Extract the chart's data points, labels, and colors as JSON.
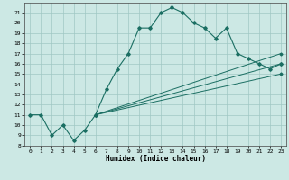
{
  "title": "",
  "xlabel": "Humidex (Indice chaleur)",
  "xlim": [
    -0.5,
    23.5
  ],
  "ylim": [
    8,
    22
  ],
  "yticks": [
    8,
    9,
    10,
    11,
    12,
    13,
    14,
    15,
    16,
    17,
    18,
    19,
    20,
    21
  ],
  "xticks": [
    0,
    1,
    2,
    3,
    4,
    5,
    6,
    7,
    8,
    9,
    10,
    11,
    12,
    13,
    14,
    15,
    16,
    17,
    18,
    19,
    20,
    21,
    22,
    23
  ],
  "bg_color": "#cce8e4",
  "line_color": "#1a6e62",
  "grid_color": "#a0c8c4",
  "series": [
    {
      "x": [
        0,
        1,
        2,
        3,
        4,
        5,
        6,
        7,
        8,
        9,
        10,
        11,
        12,
        13,
        14,
        15,
        16,
        17,
        18,
        19,
        20,
        21,
        22,
        23
      ],
      "y": [
        11,
        11,
        9,
        10,
        8.5,
        9.5,
        11,
        13.5,
        15.5,
        17,
        19.5,
        19.5,
        21,
        21.5,
        21,
        20,
        19.5,
        18.5,
        19.5,
        17,
        16.5,
        16,
        15.5,
        16
      ]
    },
    {
      "x": [
        6,
        23
      ],
      "y": [
        11,
        17
      ]
    },
    {
      "x": [
        6,
        23
      ],
      "y": [
        11,
        16
      ]
    },
    {
      "x": [
        6,
        23
      ],
      "y": [
        11,
        15
      ]
    }
  ]
}
